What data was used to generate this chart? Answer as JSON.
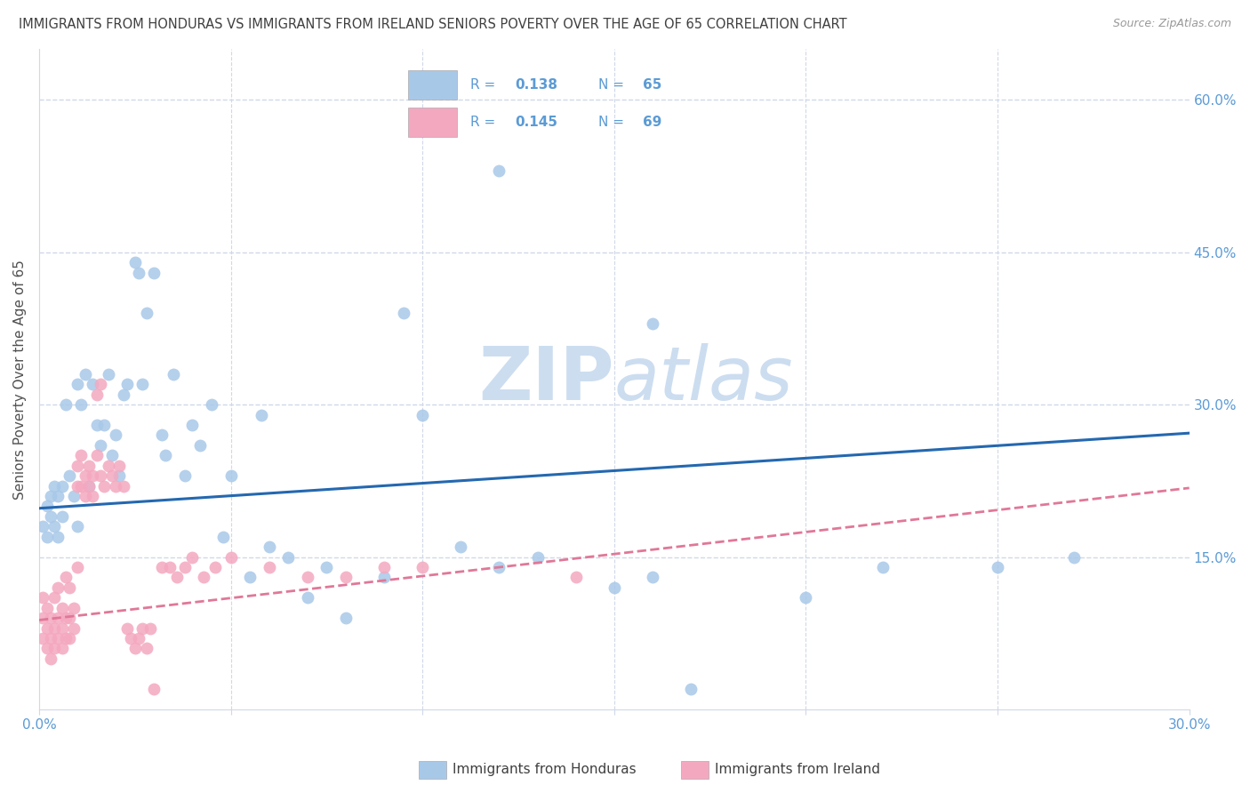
{
  "title": "IMMIGRANTS FROM HONDURAS VS IMMIGRANTS FROM IRELAND SENIORS POVERTY OVER THE AGE OF 65 CORRELATION CHART",
  "source": "Source: ZipAtlas.com",
  "ylabel": "Seniors Poverty Over the Age of 65",
  "xlim": [
    0.0,
    0.3
  ],
  "ylim": [
    0.0,
    0.65
  ],
  "xticks": [
    0.0,
    0.05,
    0.1,
    0.15,
    0.2,
    0.25,
    0.3
  ],
  "xticklabels": [
    "0.0%",
    "",
    "",
    "",
    "",
    "",
    "30.0%"
  ],
  "yticks_right": [
    0.15,
    0.3,
    0.45,
    0.6
  ],
  "ytick_labels_right": [
    "15.0%",
    "30.0%",
    "45.0%",
    "60.0%"
  ],
  "blue_color": "#a8c8e8",
  "pink_color": "#f4a8c0",
  "blue_line_color": "#2468b0",
  "pink_line_color": "#e07898",
  "axis_label_color": "#5b9bd5",
  "title_color": "#404040",
  "watermark_color": "#ccddf0",
  "grid_color": "#d0d8e8",
  "background_color": "#ffffff",
  "figsize": [
    14.06,
    8.92
  ],
  "dpi": 100,
  "blue_R": "0.138",
  "blue_N": "65",
  "pink_R": "0.145",
  "pink_N": "69",
  "blue_trend_x": [
    0.0,
    0.3
  ],
  "blue_trend_y": [
    0.198,
    0.272
  ],
  "pink_trend_x": [
    0.0,
    0.3
  ],
  "pink_trend_y": [
    0.088,
    0.218
  ],
  "blue_scatter_x": [
    0.001,
    0.002,
    0.002,
    0.003,
    0.003,
    0.004,
    0.004,
    0.005,
    0.005,
    0.006,
    0.006,
    0.007,
    0.008,
    0.009,
    0.01,
    0.01,
    0.011,
    0.012,
    0.013,
    0.014,
    0.015,
    0.016,
    0.017,
    0.018,
    0.019,
    0.02,
    0.021,
    0.022,
    0.023,
    0.025,
    0.026,
    0.027,
    0.028,
    0.03,
    0.032,
    0.033,
    0.035,
    0.038,
    0.04,
    0.042,
    0.045,
    0.048,
    0.05,
    0.055,
    0.058,
    0.06,
    0.065,
    0.07,
    0.075,
    0.08,
    0.09,
    0.095,
    0.1,
    0.11,
    0.12,
    0.13,
    0.15,
    0.16,
    0.17,
    0.2,
    0.22,
    0.25,
    0.27,
    0.16,
    0.12
  ],
  "blue_scatter_y": [
    0.18,
    0.17,
    0.2,
    0.19,
    0.21,
    0.18,
    0.22,
    0.17,
    0.21,
    0.19,
    0.22,
    0.3,
    0.23,
    0.21,
    0.18,
    0.32,
    0.3,
    0.33,
    0.22,
    0.32,
    0.28,
    0.26,
    0.28,
    0.33,
    0.25,
    0.27,
    0.23,
    0.31,
    0.32,
    0.44,
    0.43,
    0.32,
    0.39,
    0.43,
    0.27,
    0.25,
    0.33,
    0.23,
    0.28,
    0.26,
    0.3,
    0.17,
    0.23,
    0.13,
    0.29,
    0.16,
    0.15,
    0.11,
    0.14,
    0.09,
    0.13,
    0.39,
    0.29,
    0.16,
    0.14,
    0.15,
    0.12,
    0.13,
    0.02,
    0.11,
    0.14,
    0.14,
    0.15,
    0.38,
    0.53
  ],
  "pink_scatter_x": [
    0.001,
    0.001,
    0.001,
    0.002,
    0.002,
    0.002,
    0.003,
    0.003,
    0.003,
    0.004,
    0.004,
    0.004,
    0.005,
    0.005,
    0.005,
    0.006,
    0.006,
    0.006,
    0.007,
    0.007,
    0.007,
    0.008,
    0.008,
    0.008,
    0.009,
    0.009,
    0.01,
    0.01,
    0.01,
    0.011,
    0.011,
    0.012,
    0.012,
    0.013,
    0.013,
    0.014,
    0.014,
    0.015,
    0.015,
    0.016,
    0.016,
    0.017,
    0.018,
    0.019,
    0.02,
    0.021,
    0.022,
    0.023,
    0.024,
    0.025,
    0.026,
    0.027,
    0.028,
    0.029,
    0.03,
    0.032,
    0.034,
    0.036,
    0.038,
    0.04,
    0.043,
    0.046,
    0.05,
    0.06,
    0.07,
    0.08,
    0.09,
    0.1,
    0.14
  ],
  "pink_scatter_y": [
    0.07,
    0.09,
    0.11,
    0.06,
    0.08,
    0.1,
    0.05,
    0.07,
    0.09,
    0.06,
    0.08,
    0.11,
    0.07,
    0.09,
    0.12,
    0.06,
    0.08,
    0.1,
    0.07,
    0.09,
    0.13,
    0.07,
    0.09,
    0.12,
    0.08,
    0.1,
    0.22,
    0.24,
    0.14,
    0.22,
    0.25,
    0.21,
    0.23,
    0.24,
    0.22,
    0.21,
    0.23,
    0.31,
    0.25,
    0.23,
    0.32,
    0.22,
    0.24,
    0.23,
    0.22,
    0.24,
    0.22,
    0.08,
    0.07,
    0.06,
    0.07,
    0.08,
    0.06,
    0.08,
    0.02,
    0.14,
    0.14,
    0.13,
    0.14,
    0.15,
    0.13,
    0.14,
    0.15,
    0.14,
    0.13,
    0.13,
    0.14,
    0.14,
    0.13
  ],
  "bottom_legend_blue_label": "Immigrants from Honduras",
  "bottom_legend_pink_label": "Immigrants from Ireland"
}
